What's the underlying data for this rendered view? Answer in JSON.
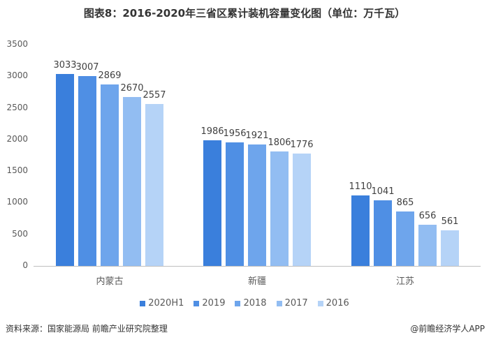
{
  "header": {
    "title": "图表8：2016-2020年三省区累计装机容量变化图（单位：万千瓦）"
  },
  "footer": {
    "source": "资料来源：国家能源局 前瞻产业研究院整理",
    "brand": "@前瞻经济学人APP"
  },
  "chart_data": {
    "type": "bar",
    "title": "图表8：2016-2020年三省区累计装机容量变化图（单位：万千瓦）",
    "xlabel": "",
    "ylabel": "万千瓦",
    "ylim": [
      0,
      3500
    ],
    "yticks": [
      0,
      500,
      1000,
      1500,
      2000,
      2500,
      3000,
      3500
    ],
    "grid": false,
    "legend_position": "bottom",
    "categories": [
      "内蒙古",
      "新疆",
      "江苏"
    ],
    "series": [
      {
        "name": "2020H1",
        "color": "#3a7fdc",
        "values": [
          3033,
          1986,
          1110
        ]
      },
      {
        "name": "2019",
        "color": "#4f8fe4",
        "values": [
          3007,
          1956,
          1041
        ]
      },
      {
        "name": "2018",
        "color": "#6ea5ec",
        "values": [
          2869,
          1921,
          865
        ]
      },
      {
        "name": "2017",
        "color": "#92bdf2",
        "values": [
          2670,
          1806,
          656
        ]
      },
      {
        "name": "2016",
        "color": "#b5d3f7",
        "values": [
          2557,
          1776,
          561
        ]
      }
    ]
  }
}
